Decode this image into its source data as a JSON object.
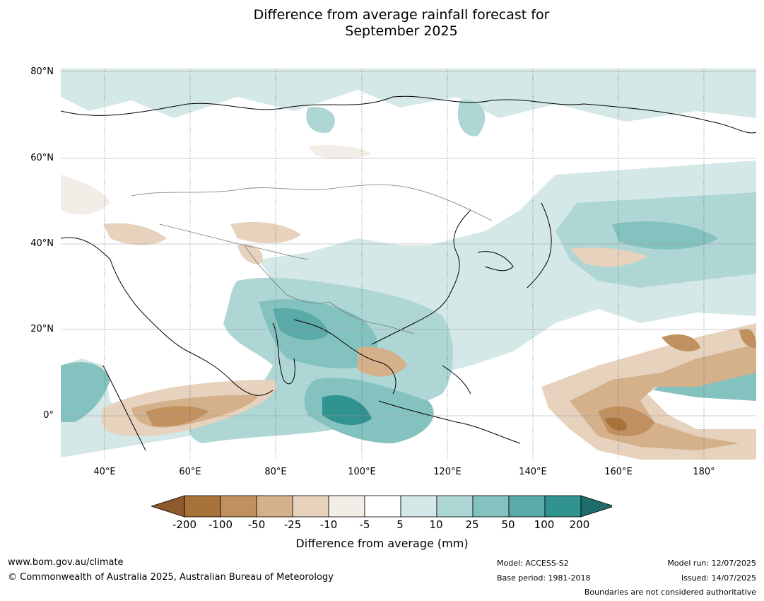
{
  "title_line1": "Difference from average rainfall forecast for",
  "title_line2": "September 2025",
  "lat_labels": [
    "80°N",
    "60°N",
    "40°N",
    "20°N",
    "0°"
  ],
  "lon_labels": [
    "40°E",
    "60°E",
    "80°E",
    "100°E",
    "120°E",
    "140°E",
    "160°E",
    "180°"
  ],
  "legend": {
    "title": "Difference from average (mm)",
    "ticks": [
      "-200",
      "-100",
      "-50",
      "-25",
      "-10",
      "-5",
      "5",
      "10",
      "25",
      "50",
      "100",
      "200"
    ],
    "colors": [
      "#8c5a2b",
      "#a8733b",
      "#c0915f",
      "#d4b08b",
      "#e6d2bd",
      "#f2ede6",
      "#ffffff",
      "#d4e8e7",
      "#aed6d5",
      "#84c2c0",
      "#5aaaa7",
      "#31938f",
      "#1f6d6a"
    ]
  },
  "footer": {
    "url": "www.bom.gov.au/climate",
    "copyright": "© Commonwealth of Australia 2025, Australian Bureau of Meteorology",
    "model": "Model: ACCESS-S2",
    "base_period": "Base period: 1981-2018",
    "model_run": "Model run: 12/07/2025",
    "issued": "Issued: 14/07/2025",
    "disclaimer": "Boundaries are not considered authoritative"
  }
}
